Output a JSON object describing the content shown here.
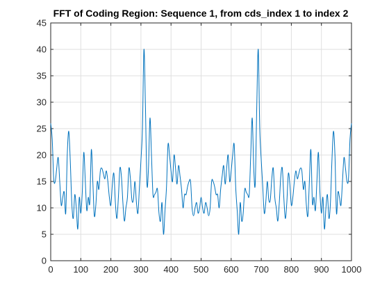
{
  "chart_data": {
    "type": "line",
    "title": "FFT of Coding Region: Sequence 1, from cds_index 1 to index 2",
    "xlabel": "",
    "ylabel": "",
    "xlim": [
      0,
      1000
    ],
    "ylim": [
      0,
      45
    ],
    "xticks": [
      0,
      100,
      200,
      300,
      400,
      500,
      600,
      700,
      800,
      900,
      1000
    ],
    "yticks": [
      0,
      5,
      10,
      15,
      20,
      25,
      30,
      35,
      40,
      45
    ],
    "grid": true,
    "legend": "none",
    "colors": {
      "line": "#0072BD",
      "grid": "#DFDFDF",
      "axis": "#262626"
    },
    "series": [
      {
        "x": [
          0,
          5,
          10,
          15,
          20,
          25,
          30,
          35,
          40,
          45,
          50,
          55,
          60,
          65,
          70,
          75,
          80,
          85,
          90,
          95,
          100,
          105,
          110,
          115,
          120,
          125,
          130,
          135,
          140,
          145,
          150,
          155,
          160,
          165,
          170,
          175,
          180,
          185,
          190,
          195,
          200,
          205,
          210,
          215,
          220,
          225,
          230,
          235,
          240,
          245,
          250,
          255,
          260,
          265,
          270,
          275,
          280,
          285,
          290,
          295,
          300,
          305,
          310,
          315,
          320,
          325,
          330,
          335,
          340,
          345,
          350,
          355,
          360,
          365,
          370,
          375,
          380,
          385,
          390,
          395,
          400,
          405,
          410,
          415,
          420,
          425,
          430,
          435,
          440,
          445,
          450,
          455,
          460,
          465,
          470,
          475,
          480,
          485,
          490,
          495,
          500
        ],
        "values": [
          26,
          23,
          15.5,
          15,
          17.5,
          19.5,
          15,
          10.5,
          12,
          13,
          9,
          20,
          24.5,
          19,
          11,
          8,
          12.5,
          10,
          6,
          12,
          9,
          13,
          20.5,
          15,
          9.5,
          12,
          11,
          21,
          15,
          8.5,
          10.5,
          15,
          13.5,
          17,
          17.5,
          16.5,
          15.5,
          17,
          15,
          12,
          10.5,
          14.5,
          16.5,
          11,
          8,
          12,
          17.5,
          16,
          11,
          7.5,
          10,
          12,
          17.5,
          15.5,
          11.5,
          11.5,
          15,
          11,
          9,
          14,
          19,
          25,
          40,
          29,
          14.5,
          17.5,
          27,
          20,
          12.5,
          12.5,
          13,
          13.5,
          9,
          7.5,
          11,
          5,
          9.5,
          14,
          22,
          20,
          17,
          15,
          20,
          17.5,
          14.5,
          18,
          16,
          13.5,
          10,
          12.5,
          12.5,
          14,
          15,
          15,
          10,
          8.5,
          10,
          11,
          9,
          10,
          12
        ]
      }
    ],
    "symmetry": "mirror about x = 500 (x -> 1000 - x)"
  }
}
